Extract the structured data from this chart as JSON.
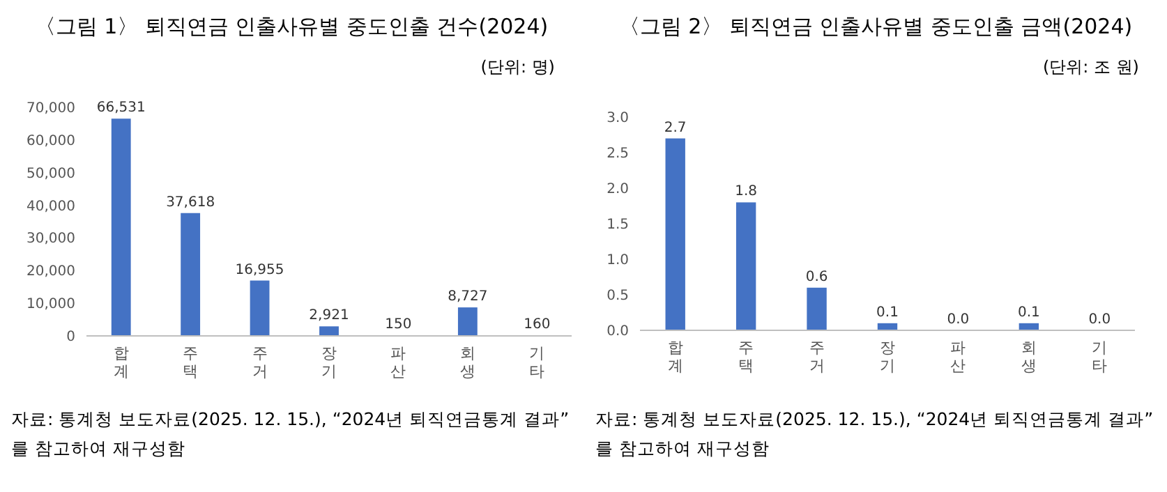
{
  "chart_data": [
    {
      "type": "bar",
      "title": "〈그림 1〉 퇴직연금 인출사유별 중도인출 건수(2024)",
      "subtitle": "(단위: 명)",
      "categories": [
        "합계",
        "주택",
        "주거",
        "장기",
        "파산",
        "회생",
        "기타"
      ],
      "values": [
        66531,
        37618,
        16955,
        2921,
        150,
        8727,
        160
      ],
      "value_labels": [
        "66,531",
        "37,618",
        "16,955",
        "2,921",
        "150",
        "8,727",
        "160"
      ],
      "color": "#4472c4",
      "ylim": [
        0,
        70000
      ],
      "yticks": [
        {
          "value": 0,
          "label": "0"
        },
        {
          "value": 10000,
          "label": "10,000"
        },
        {
          "value": 20000,
          "label": "20,000"
        },
        {
          "value": 30000,
          "label": "30,000"
        },
        {
          "value": 40000,
          "label": "40,000"
        },
        {
          "value": 50000,
          "label": "50,000"
        },
        {
          "value": 60000,
          "label": "60,000"
        },
        {
          "value": 70000,
          "label": "70,000"
        }
      ],
      "annotations": [
        "자료: 통계청 보도자료(2025. 12. 15.), “2024년 퇴직연금통계 결과” 를 참고하여 재구성함"
      ]
    },
    {
      "type": "bar",
      "title": "〈그림 2〉 퇴직연금 인출사유별 중도인출 금액(2024)",
      "subtitle": "(단위: 조 원)",
      "categories": [
        "합계",
        "주택",
        "주거",
        "장기",
        "파산",
        "회생",
        "기타"
      ],
      "values": [
        2.7,
        1.8,
        0.6,
        0.1,
        0.0,
        0.1,
        0.0
      ],
      "value_labels": [
        "2.7",
        "1.8",
        "0.6",
        "0.1",
        "0.0",
        "0.1",
        "0.0"
      ],
      "color": "#4472c4",
      "ylim": [
        0,
        3
      ],
      "yticks": [
        {
          "value": 0,
          "label": "0.0"
        },
        {
          "value": 0.5,
          "label": "0.5"
        },
        {
          "value": 1,
          "label": "1.0"
        },
        {
          "value": 1.5,
          "label": "1.5"
        },
        {
          "value": 2,
          "label": "2.0"
        },
        {
          "value": 2.5,
          "label": "2.5"
        },
        {
          "value": 3,
          "label": "3.0"
        }
      ],
      "annotations": [
        "자료: 통계청 보도자료(2025. 12. 15.), “2024년 퇴직연금통계 결과” 를 참고하여 재구성함"
      ]
    }
  ]
}
